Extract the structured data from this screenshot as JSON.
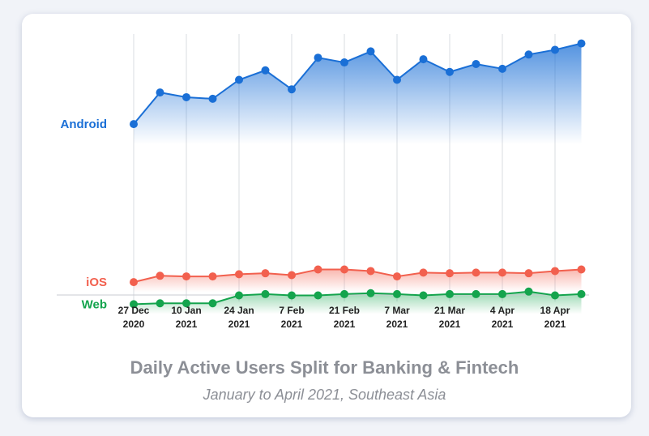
{
  "chart_data": {
    "type": "line",
    "title": "Daily Active Users Split for Banking & Fintech",
    "subtitle": "January to April 2021, Southeast Asia",
    "xlabel": "",
    "ylabel": "",
    "grid": true,
    "legend": "inline-left",
    "x": [
      "2020-12-27",
      "2021-01-03",
      "2021-01-10",
      "2021-01-17",
      "2021-01-24",
      "2021-01-31",
      "2021-02-07",
      "2021-02-14",
      "2021-02-21",
      "2021-02-28",
      "2021-03-07",
      "2021-03-14",
      "2021-03-21",
      "2021-03-28",
      "2021-04-04",
      "2021-04-11",
      "2021-04-18",
      "2021-04-25"
    ],
    "x_ticks": [
      {
        "line1": "27 Dec",
        "line2": "2020"
      },
      {
        "line1": "10 Jan",
        "line2": "2021"
      },
      {
        "line1": "24 Jan",
        "line2": "2021"
      },
      {
        "line1": "7 Feb",
        "line2": "2021"
      },
      {
        "line1": "21 Feb",
        "line2": "2021"
      },
      {
        "line1": "7 Mar",
        "line2": "2021"
      },
      {
        "line1": "21 Mar",
        "line2": "2021"
      },
      {
        "line1": "4 Apr",
        "line2": "2021"
      },
      {
        "line1": "18 Apr",
        "line2": "2021"
      }
    ],
    "ylim": [
      0,
      100
    ],
    "series": [
      {
        "name": "Android",
        "color": "#1a6fd6",
        "values": [
          71,
          81,
          79.5,
          79,
          85,
          88,
          82,
          92,
          90.5,
          94,
          85,
          91.5,
          87.5,
          90,
          88.5,
          93,
          94.5,
          96.5
        ]
      },
      {
        "name": "iOS",
        "color": "#f2604e",
        "values": [
          21,
          23,
          22.8,
          22.8,
          23.5,
          23.8,
          23.2,
          25,
          25,
          24.5,
          22.8,
          24,
          23.8,
          24,
          24,
          23.8,
          24.5,
          25
        ]
      },
      {
        "name": "Web",
        "color": "#14a44d",
        "values": [
          14,
          14.3,
          14.3,
          14.3,
          16.8,
          17.2,
          16.8,
          16.8,
          17.2,
          17.5,
          17.2,
          16.8,
          17.2,
          17.2,
          17.2,
          18,
          16.8,
          17.2
        ]
      }
    ]
  }
}
